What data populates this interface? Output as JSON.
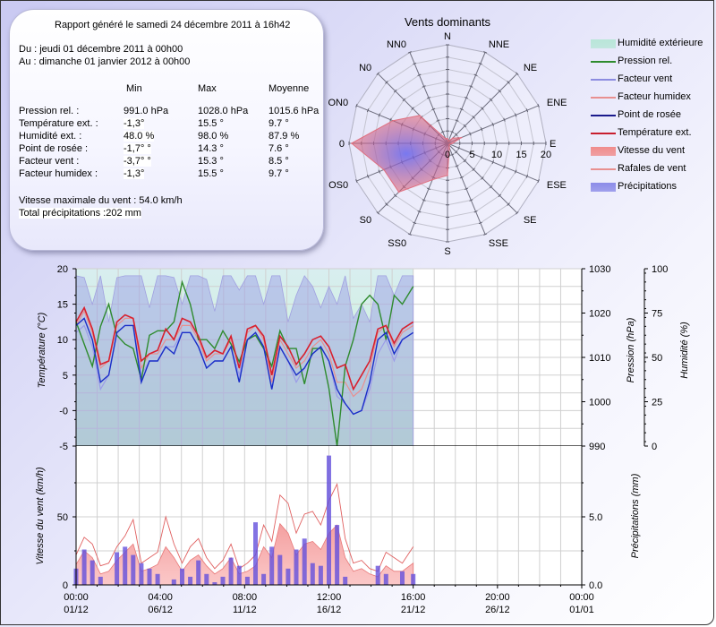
{
  "report": {
    "title": "Rapport généré le samedi 24 décembre 2011 à 16h42",
    "from": "Du : jeudi 01 décembre 2011 à 00h00",
    "to": "Au : dimanche 01 janvier 2012 à 00h00",
    "columns": [
      "Min",
      "Max",
      "Moyenne"
    ],
    "rows": [
      {
        "label": "Pression rel. :",
        "min": "991.0 hPa",
        "max": "1028.0 hPa",
        "avg": "1015.6 hPa"
      },
      {
        "label": "Température ext. :",
        "min": "-1,3°",
        "max": "15.5 °",
        "avg": "9.7 °"
      },
      {
        "label": "Humidité ext. :",
        "min": "48.0 %",
        "max": "98.0 %",
        "avg": "87.9 %"
      },
      {
        "label": "Point de rosée :",
        "min": "-1,7° °",
        "max": "14.3 °",
        "avg": "7.6 °"
      },
      {
        "label": "Facteur vent :",
        "min": "-3,7° °",
        "max": "15.3 °",
        "avg": "8.5 °"
      },
      {
        "label": "Facteur humidex :",
        "min": "-1,3°",
        "max": "15.5 °",
        "avg": "9.7 °"
      }
    ],
    "max_wind": "Vitesse maximale du vent : 54.0 km/h",
    "total_precip": "Total précipitations :202 mm"
  },
  "legend": [
    {
      "label": "Humidité extérieure",
      "kind": "box",
      "color": "#b8e6d8"
    },
    {
      "label": "Pression rel.",
      "kind": "line",
      "color": "#2e8b2e"
    },
    {
      "label": "Facteur vent",
      "kind": "line",
      "color": "#8c8ce0"
    },
    {
      "label": "Facteur humidex",
      "kind": "line",
      "color": "#e89090"
    },
    {
      "label": "Point de rosée",
      "kind": "line",
      "color": "#1a1a8c"
    },
    {
      "label": "Température ext.",
      "kind": "line",
      "color": "#c81e2e"
    },
    {
      "label": "Vitesse du vent",
      "kind": "box",
      "color": "#f08c8c"
    },
    {
      "label": "Rafales de vent",
      "kind": "line",
      "color": "#e89090"
    },
    {
      "label": "Précipitations",
      "kind": "box",
      "color": "#8c8ce8"
    }
  ],
  "chart_data": [
    {
      "type": "radar",
      "title": "Vents dominants",
      "directions": [
        "N",
        "NNE",
        "NE",
        "ENE",
        "E",
        "ESE",
        "SE",
        "SSE",
        "S",
        "SS0",
        "S0",
        "OS0",
        "0",
        "ON0",
        "N0",
        "NN0"
      ],
      "values": [
        1,
        0.5,
        1.5,
        3,
        1,
        0.5,
        0.5,
        1,
        6.5,
        8,
        14,
        14,
        19.5,
        12,
        8,
        1
      ],
      "rticks": [
        "0",
        "5",
        "10",
        "15",
        "20"
      ],
      "rlim": [
        0,
        20
      ],
      "color": "#e06070"
    },
    {
      "type": "line",
      "title": "",
      "x_tick_labels": [
        [
          "00:00",
          "01/12"
        ],
        [
          "04:00",
          "06/12"
        ],
        [
          "08:00",
          "11/12"
        ],
        [
          "12:00",
          "16/12"
        ],
        [
          "16:00",
          "21/12"
        ],
        [
          "20:00",
          "26/12"
        ],
        [
          "00:00",
          "01/01"
        ]
      ],
      "xlim_days": [
        0,
        31
      ],
      "data_end_day": 20.67,
      "ylabel_left": "Température (°C)",
      "ylim_left": [
        -5,
        20
      ],
      "yticks_left": [
        "20",
        "15",
        "10",
        "5",
        "-0",
        "-5"
      ],
      "ylabel_right1": "Pression (hPa)",
      "ylim_right1": [
        990,
        1030
      ],
      "yticks_right1": [
        "1030",
        "1020",
        "1010",
        "1000",
        "990"
      ],
      "ylabel_right2": "Humidité (%)",
      "ylim_right2": [
        0,
        100
      ],
      "yticks_right2": [
        "100",
        "75",
        "50",
        "25",
        "0"
      ],
      "x_days": [
        0,
        0.5,
        1,
        1.5,
        2,
        2.5,
        3,
        3.5,
        4,
        4.5,
        5,
        5.5,
        6,
        6.5,
        7,
        7.5,
        8,
        8.5,
        9,
        9.5,
        10,
        10.5,
        11,
        11.5,
        12,
        12.5,
        13,
        13.5,
        14,
        14.5,
        15,
        15.5,
        16,
        16.5,
        17,
        17.5,
        18,
        18.5,
        19,
        19.5,
        20,
        20.67
      ],
      "series": [
        {
          "name": "Humidité extérieure",
          "axis": "right2",
          "values": [
            96,
            95,
            80,
            96,
            70,
            95,
            96,
            96,
            96,
            78,
            96,
            96,
            95,
            80,
            96,
            96,
            94,
            76,
            96,
            96,
            88,
            96,
            96,
            80,
            96,
            96,
            70,
            85,
            96,
            90,
            78,
            90,
            80,
            96,
            72,
            80,
            70,
            96,
            96,
            85,
            96,
            96
          ]
        },
        {
          "name": "Pression rel.",
          "axis": "right1",
          "values": [
            1018,
            1013,
            1008,
            1017,
            1022,
            1015,
            1013,
            1012,
            1005,
            1015,
            1016,
            1016,
            1018,
            1027,
            1022,
            1014,
            1014,
            1012,
            1016,
            1013,
            1009,
            1014,
            1015,
            1012,
            1008,
            1016,
            1012,
            1012,
            1004,
            1012,
            1012,
            1003,
            990,
            1008,
            1014,
            1022,
            1024,
            1022,
            1014,
            1024,
            1022,
            1026
          ]
        },
        {
          "name": "Facteur vent",
          "axis": "left",
          "values": [
            11,
            12,
            9,
            3,
            5,
            11,
            12,
            12,
            5,
            7,
            7,
            9,
            9,
            11,
            11,
            9,
            6,
            7,
            7,
            9,
            5,
            10,
            11,
            9,
            3,
            9,
            7,
            4,
            6,
            8,
            9,
            7,
            2,
            1,
            -0.5,
            0,
            3,
            8,
            10,
            7,
            10,
            11
          ]
        },
        {
          "name": "Facteur humidex",
          "axis": "left",
          "values": [
            12,
            14,
            11,
            6,
            7,
            12,
            13,
            13,
            6,
            8,
            8,
            10,
            10,
            12,
            12,
            10,
            7,
            8,
            8,
            10,
            6,
            11,
            12,
            10,
            4,
            10,
            8,
            6,
            7,
            9,
            10,
            8,
            4,
            4,
            2,
            3,
            6,
            11,
            12,
            9,
            11,
            12
          ]
        },
        {
          "name": "Point de rosée",
          "axis": "left",
          "values": [
            12,
            13,
            10,
            4,
            5,
            11,
            12,
            12,
            4,
            7,
            7,
            9,
            8,
            11,
            11,
            9,
            6,
            7,
            7,
            9,
            4,
            10,
            11,
            9,
            3,
            9,
            7,
            5,
            6,
            8,
            9,
            7,
            3,
            1,
            -0.5,
            0,
            4,
            10,
            11,
            8,
            10,
            11
          ]
        },
        {
          "name": "Température ext.",
          "axis": "left",
          "values": [
            12.5,
            14.5,
            11.5,
            6.5,
            7,
            12.5,
            13.5,
            13,
            7,
            8,
            8.5,
            11.5,
            10,
            13,
            12.5,
            10.5,
            7.5,
            8.5,
            8,
            10.5,
            6,
            11.5,
            12,
            10.5,
            5,
            10.5,
            9,
            6.5,
            8,
            10,
            10.5,
            9,
            6,
            6.5,
            3,
            5,
            7,
            11.5,
            12,
            9.5,
            11.5,
            12.5
          ]
        }
      ]
    },
    {
      "type": "bar",
      "ylabel_left": "Vitesse du vent (km/h)",
      "ylim_left": [
        0,
        100
      ],
      "yticks_left": [
        "50",
        "0"
      ],
      "ylabel_right": "Précipitations (mm)",
      "ylim_right": [
        0,
        10
      ],
      "yticks_right": [
        "5.0",
        "0.0"
      ],
      "x_days": [
        0,
        0.5,
        1,
        1.5,
        2,
        2.5,
        3,
        3.5,
        4,
        4.5,
        5,
        5.5,
        6,
        6.5,
        7,
        7.5,
        8,
        8.5,
        9,
        9.5,
        10,
        10.5,
        11,
        11.5,
        12,
        12.5,
        13,
        13.5,
        14,
        14.5,
        15,
        15.5,
        16,
        16.5,
        17,
        17.5,
        18,
        18.5,
        19,
        19.5,
        20,
        20.67
      ],
      "series": [
        {
          "name": "Vitesse du vent",
          "values": [
            15,
            25,
            20,
            8,
            10,
            18,
            24,
            30,
            10,
            12,
            15,
            28,
            20,
            10,
            18,
            22,
            14,
            8,
            12,
            20,
            8,
            10,
            14,
            28,
            20,
            45,
            38,
            22,
            30,
            32,
            26,
            38,
            44,
            20,
            10,
            12,
            8,
            6,
            14,
            10,
            10,
            16
          ]
        },
        {
          "name": "Rafales de vent",
          "values": [
            22,
            35,
            30,
            14,
            16,
            28,
            36,
            48,
            16,
            20,
            24,
            50,
            30,
            16,
            28,
            34,
            20,
            12,
            18,
            30,
            12,
            16,
            22,
            44,
            32,
            66,
            60,
            38,
            52,
            54,
            44,
            62,
            74,
            34,
            16,
            18,
            12,
            10,
            24,
            20,
            16,
            28
          ]
        },
        {
          "name": "Précipitations",
          "values": [
            1.2,
            2.6,
            1.8,
            0.6,
            0,
            2.4,
            2.8,
            2.2,
            1.6,
            1.2,
            0.8,
            0,
            0.4,
            1.2,
            0.6,
            1.8,
            0.8,
            0.2,
            0.6,
            2,
            1.4,
            0.6,
            4.6,
            0.8,
            2.8,
            2.2,
            1.2,
            2.6,
            3.4,
            1.6,
            1.4,
            9.5,
            4.4,
            0.6,
            0,
            0,
            0,
            1.4,
            0.8,
            0,
            1,
            0.8
          ]
        }
      ]
    }
  ]
}
